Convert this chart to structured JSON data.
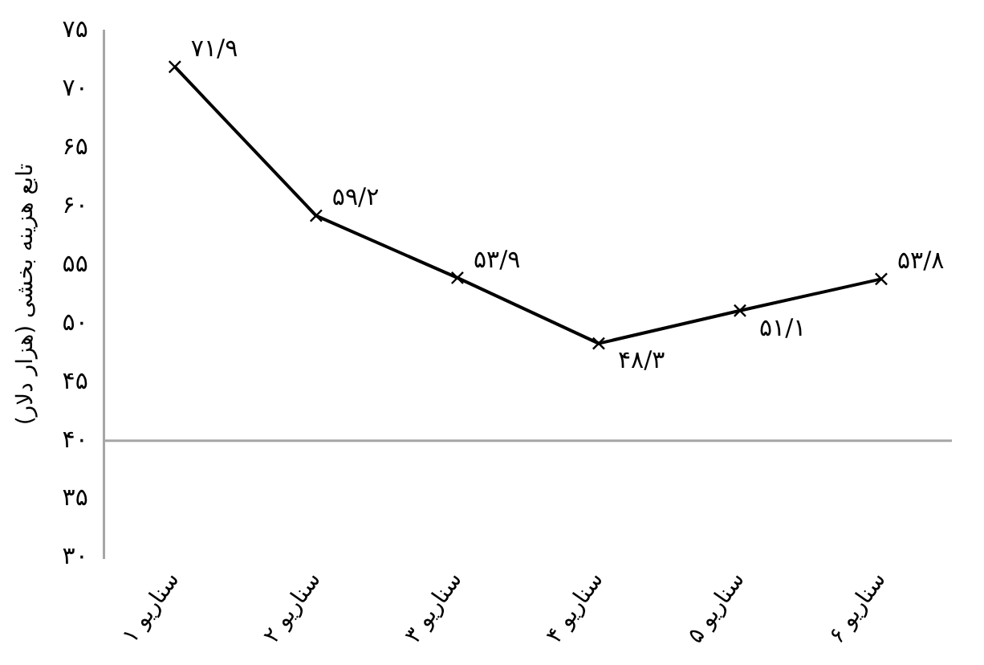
{
  "chart_data": {
    "type": "line",
    "ylabel": "تابع هزینه بخشی (هزار دلار)",
    "categories": [
      "سناریو ۱",
      "سناریو ۲",
      "سناریو ۳",
      "سناریو ۴",
      "سناریو ۵",
      "سناریو ۶"
    ],
    "series": [
      {
        "color": "#000000",
        "values": [
          71.9,
          59.2,
          53.9,
          48.3,
          51.1,
          53.8
        ],
        "value_labels": [
          "۷۱/۹",
          "۵۹/۲",
          "۵۳/۹",
          "۴۸/۳",
          "۵۱/۱",
          "۵۳/۸"
        ]
      }
    ],
    "ylim": [
      30,
      75
    ],
    "yticks": [
      {
        "value": 30,
        "label": "۳۰"
      },
      {
        "value": 35,
        "label": "۳۵"
      },
      {
        "value": 40,
        "label": "۴۰"
      },
      {
        "value": 45,
        "label": "۴۵"
      },
      {
        "value": 50,
        "label": "۵۰"
      },
      {
        "value": 55,
        "label": "۵۵"
      },
      {
        "value": 60,
        "label": "۶۰"
      },
      {
        "value": 65,
        "label": "۶۵"
      },
      {
        "value": 70,
        "label": "۷۰"
      },
      {
        "value": 75,
        "label": "۷۵"
      }
    ],
    "ref_lines": [
      {
        "axis": "y",
        "value": 40,
        "color": "#a6a6a6"
      }
    ],
    "marker": "cross",
    "line_style": "solid",
    "grid": false,
    "legend": false
  }
}
